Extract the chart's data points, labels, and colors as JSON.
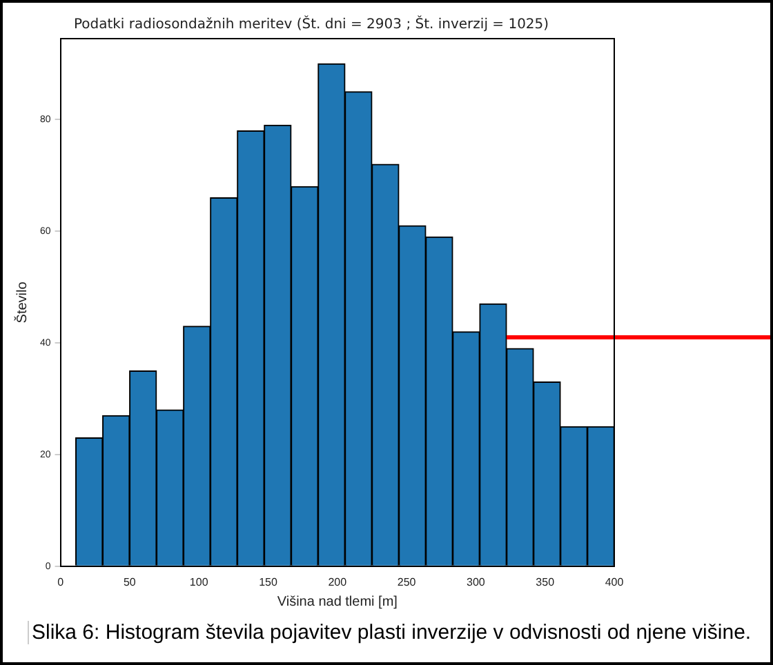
{
  "chart_data": {
    "type": "histogram",
    "title": "Podatki radiosondažnih meritev (Št. dni = 2903 ; Št. inverzij = 1025)",
    "xlabel": "Višina nad tlemi [m]",
    "ylabel": "Število",
    "bins": [
      11,
      30.5,
      49.9,
      69.4,
      88.8,
      108.3,
      127.7,
      147.2,
      166.6,
      186.1,
      205.5,
      225,
      244.4,
      263.9,
      283.3,
      302.8,
      322.2,
      341.7,
      361.1,
      380.6,
      400
    ],
    "values": [
      23,
      27,
      35,
      28,
      43,
      66,
      78,
      79,
      68,
      90,
      85,
      72,
      61,
      59,
      42,
      47,
      39,
      33,
      25,
      25
    ],
    "color": "#1f77b4",
    "ref_lines": [
      {
        "axis": "y",
        "value": 41,
        "color": "#ff0000"
      }
    ],
    "xlim": [
      0,
      400
    ],
    "xticks": [
      0,
      50,
      100,
      150,
      200,
      250,
      300,
      350,
      400
    ],
    "ylim": [
      0,
      94.5
    ],
    "yticks": [
      0,
      20,
      40,
      60,
      80
    ],
    "grid": false,
    "legend": false,
    "annotations": [
      "Slika 6: Histogram števila pojavitev plasti inverzije v odvisnosti od njene višine."
    ]
  }
}
